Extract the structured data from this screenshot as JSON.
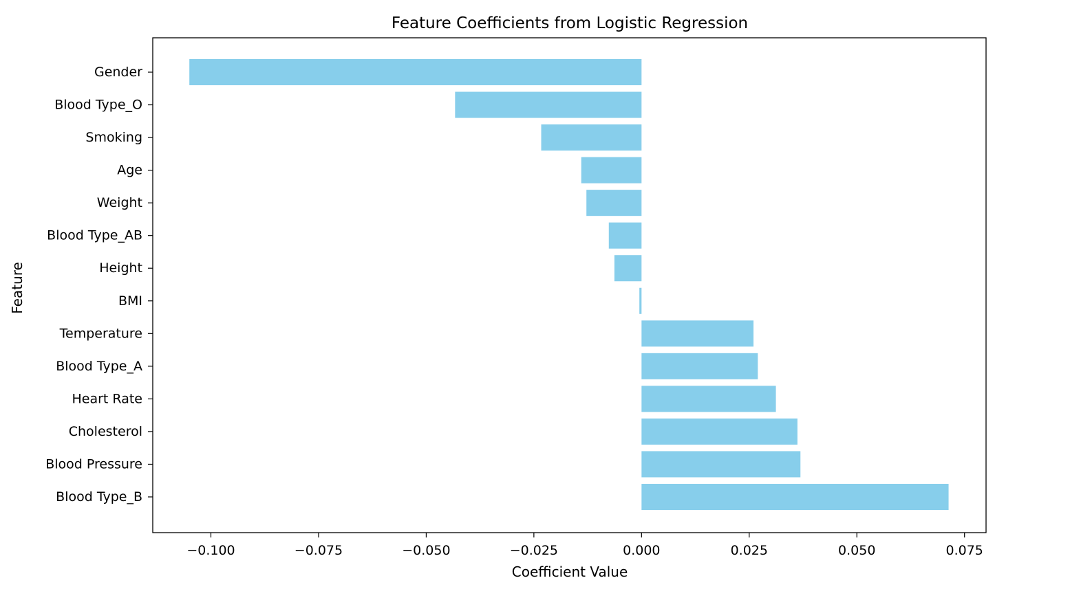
{
  "chart_data": {
    "type": "bar",
    "orientation": "horizontal",
    "title": "Feature Coefficients from Logistic Regression",
    "xlabel": "Coefficient Value",
    "ylabel": "Feature",
    "bar_color": "#87ceeb",
    "categories": [
      "Gender",
      "Blood Type_O",
      "Smoking",
      "Age",
      "Weight",
      "Blood Type_AB",
      "Height",
      "BMI",
      "Temperature",
      "Blood Type_A",
      "Heart Rate",
      "Cholesterol",
      "Blood Pressure",
      "Blood Type_B"
    ],
    "values": [
      -0.105,
      -0.0433,
      -0.0233,
      -0.014,
      -0.0128,
      -0.0076,
      -0.0063,
      -0.0005,
      0.026,
      0.027,
      0.0312,
      0.0362,
      0.0369,
      0.0713
    ],
    "xlim": [
      -0.1135,
      0.08
    ],
    "xticks": [
      -0.1,
      -0.075,
      -0.05,
      -0.025,
      0.0,
      0.025,
      0.05,
      0.075
    ],
    "xtick_labels": [
      "−0.100",
      "−0.075",
      "−0.050",
      "−0.025",
      "0.000",
      "0.025",
      "0.050",
      "0.075"
    ],
    "grid": false,
    "legend": false
  }
}
